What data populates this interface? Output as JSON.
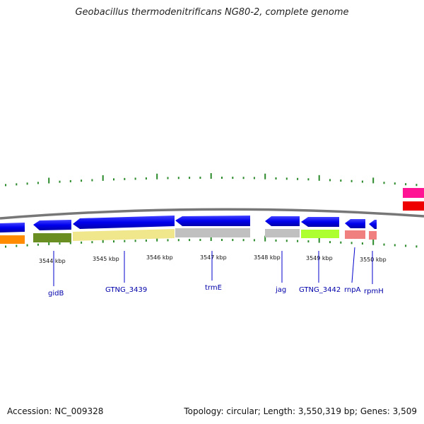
{
  "title": "Geobacillus thermodenitrificans NG80-2, complete genome",
  "footer": {
    "accession": "Accession: NC_009328",
    "summary": "Topology: circular; Length: 3,550,319 bp; Genes: 3,509"
  },
  "colors": {
    "backbone": "#777777",
    "gc_ticks": "#2a8a2a",
    "label_line": "#0000cc",
    "label_text": "#0000aa"
  },
  "scale_labels": [
    "3544 kbp",
    "3545 kbp",
    "3546 kbp",
    "3547 kbp",
    "3548 kbp",
    "3549 kbp",
    "3550 kbp"
  ],
  "gene_labels": [
    "gidB",
    "GTNG_3439",
    "trmE",
    "jag",
    "GTNG_3442",
    "rnpA",
    "rpmH"
  ],
  "features": [
    {
      "strand": "-",
      "color": "#0000ee",
      "note": "reverse strand gene (partial, left edge)"
    },
    {
      "strand": "-",
      "color": "#0000ee",
      "note": "gidB"
    },
    {
      "strand": "-",
      "color": "#0000ee",
      "note": "GTNG_3439"
    },
    {
      "strand": "-",
      "color": "#0000ee",
      "note": "trmE"
    },
    {
      "strand": "-",
      "color": "#0000ee",
      "note": "jag"
    },
    {
      "strand": "-",
      "color": "#0000ee",
      "note": "GTNG_3442"
    },
    {
      "strand": "-",
      "color": "#0000ee",
      "note": "rnpA"
    },
    {
      "strand": "-",
      "color": "#0000ee",
      "note": "rpmH"
    }
  ],
  "cog_colors": [
    "#ff8c00",
    "#6b8e23",
    "#f0e68c",
    "#c0c0c0",
    "#c0c0c0",
    "#adff2f",
    "#f08080",
    "#f08080"
  ],
  "right_edge_colors": [
    "#ff1493",
    "#ee0000"
  ]
}
